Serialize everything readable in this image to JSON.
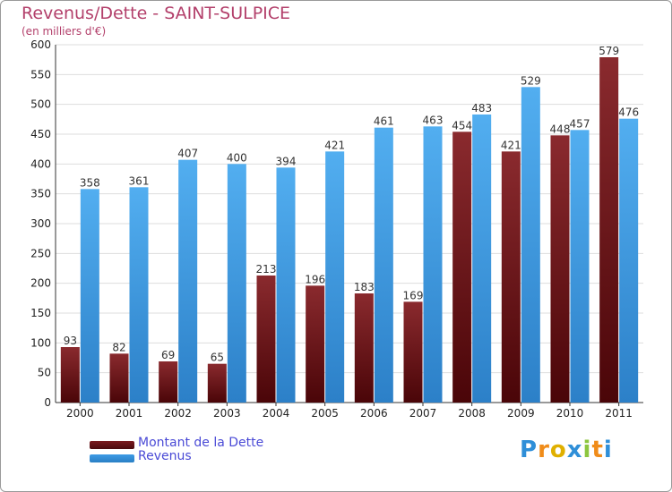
{
  "chart_data": {
    "type": "bar",
    "title": "Revenus/Dette - SAINT-SULPICE",
    "subtitle": "(en milliers d'€)",
    "categories": [
      "2000",
      "2001",
      "2002",
      "2003",
      "2004",
      "2005",
      "2006",
      "2007",
      "2008",
      "2009",
      "2010",
      "2011"
    ],
    "series": [
      {
        "name": "Montant de la Dette",
        "values": [
          93,
          82,
          69,
          65,
          213,
          196,
          183,
          169,
          454,
          421,
          448,
          579
        ],
        "color": "#7a1a1f"
      },
      {
        "name": "Revenus",
        "values": [
          358,
          361,
          407,
          400,
          394,
          421,
          461,
          463,
          483,
          529,
          457,
          476
        ],
        "color": "#3d9be6"
      }
    ],
    "ylim": [
      0,
      600
    ],
    "yticks": [
      0,
      50,
      100,
      150,
      200,
      250,
      300,
      350,
      400,
      450,
      500,
      550,
      600
    ],
    "grid": true,
    "legend_position": "bottom-left",
    "colors": {
      "title": "#b3406b",
      "grid": "#dddddd",
      "axis_text": "#222222",
      "legend_text": "#4a4ad6"
    }
  },
  "legend": [
    {
      "label": "Montant de la Dette",
      "color": "#7a1a1f"
    },
    {
      "label": "Revenus",
      "color": "#3d9be6"
    }
  ],
  "brand": {
    "text": "Proxiti",
    "letter_colors": [
      "#2f8fd8",
      "#f08c1a",
      "#e0b000",
      "#2f8fd8",
      "#8cc63f",
      "#f08c1a",
      "#2f8fd8"
    ]
  }
}
